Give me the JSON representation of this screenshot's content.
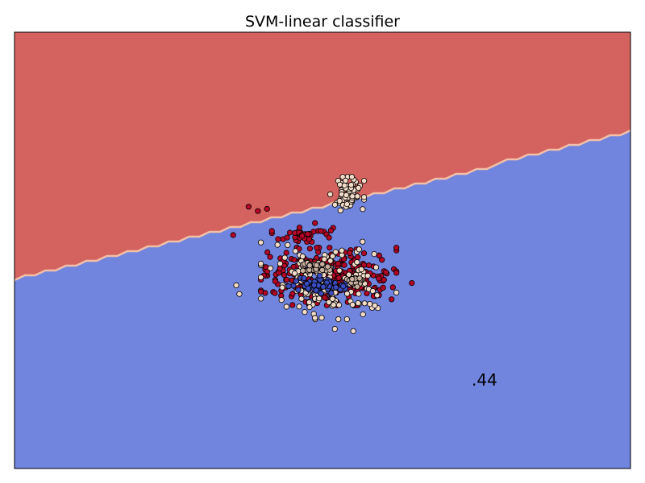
{
  "chart_data": {
    "type": "scatter",
    "title": "SVM-linear classifier",
    "xlabel": "",
    "ylabel": "",
    "ticks_visible": false,
    "annotation": ".44",
    "decision_regions": [
      {
        "class": "upper",
        "color": "#d4625e"
      },
      {
        "class": "lower",
        "color": "#7185de"
      }
    ],
    "boundary_color": "#f2c0a8",
    "point_outline": "#000000",
    "classes": [
      {
        "color": "#b40426"
      },
      {
        "color": "#f2dcc8"
      },
      {
        "color": "#3b4cc0"
      },
      {
        "color": "#c9b0a0"
      }
    ],
    "boundary_line": [
      [
        0.0,
        0.565
      ],
      [
        1.0,
        0.23
      ]
    ],
    "clusters": [
      {
        "class": 0,
        "center": [
          0.51,
          0.56
        ],
        "spread": [
          0.1,
          0.06
        ],
        "n": 360
      },
      {
        "class": 1,
        "center": [
          0.51,
          0.57
        ],
        "spread": [
          0.1,
          0.08
        ],
        "n": 150
      },
      {
        "class": 1,
        "center": [
          0.54,
          0.37
        ],
        "spread": [
          0.025,
          0.035
        ],
        "n": 70
      },
      {
        "class": 0,
        "center": [
          0.47,
          0.46
        ],
        "spread": [
          0.05,
          0.025
        ],
        "n": 40
      },
      {
        "class": 2,
        "center": [
          0.5,
          0.58
        ],
        "spread": [
          0.05,
          0.02
        ],
        "n": 70
      },
      {
        "class": 3,
        "center": [
          0.49,
          0.54
        ],
        "spread": [
          0.02,
          0.012
        ],
        "n": 40
      },
      {
        "class": 3,
        "center": [
          0.55,
          0.57
        ],
        "spread": [
          0.02,
          0.012
        ],
        "n": 25
      }
    ],
    "outliers": [
      {
        "class": 0,
        "pt": [
          0.38,
          0.4
        ]
      },
      {
        "class": 0,
        "pt": [
          0.395,
          0.41
        ]
      },
      {
        "class": 0,
        "pt": [
          0.41,
          0.405
        ]
      },
      {
        "class": 0,
        "pt": [
          0.355,
          0.465
        ]
      },
      {
        "class": 0,
        "pt": [
          0.645,
          0.575
        ]
      },
      {
        "class": 1,
        "pt": [
          0.36,
          0.58
        ]
      },
      {
        "class": 1,
        "pt": [
          0.365,
          0.6
        ]
      },
      {
        "class": 1,
        "pt": [
          0.52,
          0.68
        ]
      },
      {
        "class": 1,
        "pt": [
          0.55,
          0.685
        ]
      },
      {
        "class": 1,
        "pt": [
          0.565,
          0.48
        ]
      }
    ]
  }
}
